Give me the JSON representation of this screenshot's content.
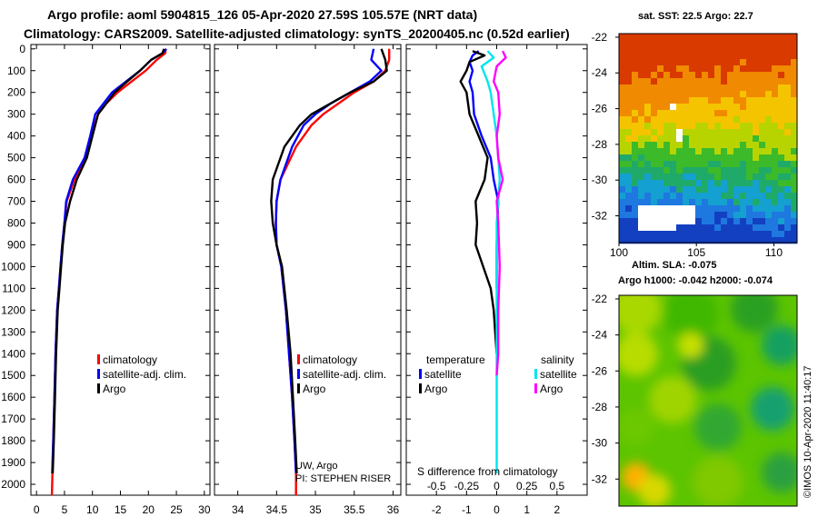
{
  "header": {
    "title_line1": "Argo profile: aoml 5904815_126 05-Apr-2020 27.59S 105.57E (NRT data)",
    "title_line2": "Climatology: CARS2009. Satellite-adjusted climatology: synTS_20200405.nc (0.52d earlier)"
  },
  "colors": {
    "climatology": "#ff0000",
    "satellite": "#0000ff",
    "argo": "#000000",
    "satellite_salinity": "#00e5ee",
    "argo_salinity": "#ff00ff"
  },
  "chart_data": [
    {
      "type": "line",
      "name": "temperature-profile",
      "xlim": [
        -1,
        31
      ],
      "ylim": [
        2050,
        -20
      ],
      "xticks": [
        0,
        5,
        10,
        15,
        20,
        25,
        30
      ],
      "yticks": [
        0,
        100,
        200,
        300,
        400,
        500,
        600,
        700,
        800,
        900,
        1000,
        1100,
        1200,
        1300,
        1400,
        1500,
        1600,
        1700,
        1800,
        1900,
        2000
      ],
      "legend": [
        "climatology",
        "satellite-adj. clim.",
        "Argo"
      ],
      "series": [
        {
          "name": "climatology",
          "color": "#ff0000",
          "x": [
            23.1,
            23,
            21.5,
            19.5,
            17,
            14.5,
            12.5,
            11,
            9.8,
            8.8,
            6.8,
            5.4,
            5,
            4.6,
            4.3,
            4,
            3.7,
            3.4,
            3.2,
            3.0,
            2.85,
            2.75
          ],
          "y": [
            0,
            20,
            50,
            100,
            150,
            200,
            250,
            300,
            400,
            500,
            600,
            700,
            800,
            900,
            1000,
            1100,
            1200,
            1400,
            1600,
            1800,
            1950,
            2050
          ]
        },
        {
          "name": "satellite-adj. clim.",
          "color": "#0000ff",
          "x": [
            23.2,
            22.5,
            20.5,
            18.5,
            16,
            13.5,
            12,
            10.5,
            9.6,
            8.6,
            6.5,
            5.3,
            5,
            4.6,
            4.3,
            4,
            3.7,
            3.4,
            3.2,
            3.0,
            2.8
          ],
          "y": [
            0,
            20,
            50,
            100,
            150,
            200,
            250,
            300,
            400,
            500,
            600,
            700,
            800,
            900,
            1000,
            1100,
            1200,
            1400,
            1600,
            1800,
            1950
          ]
        },
        {
          "name": "Argo",
          "color": "#000000",
          "x": [
            22.8,
            22.5,
            20.5,
            18.5,
            16.2,
            14,
            12.5,
            11,
            10,
            9,
            7.2,
            6,
            5.1,
            4.7,
            4.4,
            4.1,
            3.8,
            3.5,
            3.3,
            3.1,
            2.9
          ],
          "y": [
            0,
            20,
            50,
            100,
            150,
            200,
            250,
            300,
            400,
            500,
            600,
            700,
            800,
            900,
            1000,
            1100,
            1200,
            1400,
            1600,
            1800,
            1950
          ]
        }
      ]
    },
    {
      "type": "line",
      "name": "salinity-profile",
      "xlim": [
        33.7,
        36.1
      ],
      "ylim": [
        2050,
        -20
      ],
      "xticks": [
        34,
        34.5,
        35,
        35.5,
        36
      ],
      "legend": [
        "climatology",
        "satellite-adj. clim.",
        "Argo"
      ],
      "series": [
        {
          "name": "climatology",
          "color": "#ff0000",
          "x": [
            35.95,
            35.95,
            35.9,
            35.75,
            35.5,
            35.3,
            35.1,
            34.95,
            34.75,
            34.55,
            34.5,
            34.49,
            34.5,
            34.56,
            34.62,
            34.66,
            34.7,
            34.73,
            34.75,
            34.75
          ],
          "y": [
            0,
            50,
            100,
            150,
            200,
            250,
            300,
            350,
            450,
            600,
            700,
            800,
            900,
            1000,
            1200,
            1400,
            1600,
            1800,
            1950,
            2050
          ]
        },
        {
          "name": "satellite-adj. clim.",
          "color": "#0000ff",
          "x": [
            35.75,
            35.72,
            35.85,
            35.7,
            35.45,
            35.2,
            35.0,
            34.85,
            34.7,
            34.55,
            34.5,
            34.49,
            34.5,
            34.56,
            34.62,
            34.66,
            34.7,
            34.73,
            34.75
          ],
          "y": [
            0,
            50,
            100,
            150,
            200,
            250,
            300,
            350,
            450,
            600,
            700,
            800,
            900,
            1000,
            1200,
            1400,
            1600,
            1800,
            1950
          ]
        },
        {
          "name": "Argo",
          "color": "#000000",
          "x": [
            35.85,
            35.9,
            35.92,
            35.75,
            35.45,
            35.2,
            34.95,
            34.8,
            34.6,
            34.45,
            34.43,
            34.45,
            34.5,
            34.57,
            34.63,
            34.68,
            34.71,
            34.74,
            34.76
          ],
          "y": [
            0,
            50,
            100,
            150,
            200,
            250,
            300,
            350,
            450,
            600,
            700,
            800,
            900,
            1000,
            1200,
            1400,
            1600,
            1800,
            1950
          ]
        }
      ],
      "annotations": [
        "UW, Argo",
        "PI: STEPHEN RISER"
      ]
    },
    {
      "type": "line",
      "name": "difference-profile",
      "xlim": [
        -3,
        3
      ],
      "ylim": [
        2050,
        -20
      ],
      "xticks": [
        -2,
        -1,
        0,
        1,
        2
      ],
      "xlabel": "S difference from climatology",
      "secondary_ticks": [
        -0.5,
        -0.25,
        0,
        0.25,
        0.5
      ],
      "legend_groups": {
        "temperature": [
          "satellite",
          "Argo"
        ],
        "salinity": [
          "satellite",
          "Argo"
        ]
      },
      "series": [
        {
          "name": "temperature satellite",
          "color": "#0000ff",
          "x": [
            -0.6,
            -0.8,
            -0.9,
            -0.8,
            -0.9,
            -0.8,
            -0.75,
            -0.5,
            -0.2,
            -0.1,
            0.05,
            0.02,
            0,
            0,
            0
          ],
          "y": [
            10,
            30,
            60,
            100,
            150,
            200,
            300,
            400,
            500,
            600,
            700,
            800,
            900,
            1000,
            1100
          ]
        },
        {
          "name": "temperature Argo",
          "color": "#000000",
          "x": [
            -0.8,
            -0.4,
            -0.9,
            -1,
            -1.2,
            -1,
            -0.9,
            -0.6,
            -0.3,
            -0.4,
            -0.7,
            -0.65,
            -0.7,
            -0.45,
            -0.2,
            -0.1,
            -0.05,
            0
          ],
          "y": [
            10,
            30,
            60,
            100,
            150,
            200,
            300,
            400,
            500,
            600,
            700,
            800,
            900,
            1000,
            1100,
            1200,
            1300,
            1400
          ]
        },
        {
          "name": "salinity satellite",
          "color": "#00e5ee",
          "x": [
            -0.3,
            -0.1,
            -0.5,
            -0.3,
            -0.2,
            -0.1,
            0,
            0.05,
            0.1,
            0.05,
            0,
            0,
            0,
            0,
            0,
            0
          ],
          "y": [
            10,
            40,
            80,
            150,
            200,
            300,
            400,
            500,
            600,
            700,
            800,
            1000,
            1200,
            1400,
            1700,
            1950
          ]
        },
        {
          "name": "salinity Argo",
          "color": "#ff00ff",
          "x": [
            0.2,
            0.3,
            0,
            -0.1,
            0.05,
            0.1,
            0,
            0.05,
            0.2,
            0,
            0.05,
            0.1,
            0.05,
            0.05,
            0
          ],
          "y": [
            10,
            40,
            80,
            150,
            200,
            300,
            400,
            500,
            600,
            700,
            800,
            1000,
            1200,
            1400,
            1500
          ]
        }
      ]
    },
    {
      "type": "heatmap",
      "name": "sst-map",
      "title": "sat. SST: 22.5 Argo: 22.7",
      "xlim": [
        100,
        111.5
      ],
      "ylim": [
        -33.5,
        -21.8
      ],
      "xticks": [
        100,
        105,
        110
      ],
      "yticks": [
        -22,
        -24,
        -26,
        -28,
        -30,
        -32
      ]
    },
    {
      "type": "heatmap",
      "name": "sla-map",
      "title_line1": "Altim. SLA: -0.075",
      "title_line2": "Argo h1000: -0.042 h2000: -0.074",
      "xlim": [
        100,
        111.5
      ],
      "ylim": [
        -33.5,
        -21.8
      ],
      "yticks": [
        -22,
        -24,
        -26,
        -28,
        -30,
        -32
      ]
    }
  ],
  "credit": "©IMOS 10-Apr-2020 11:40:17"
}
